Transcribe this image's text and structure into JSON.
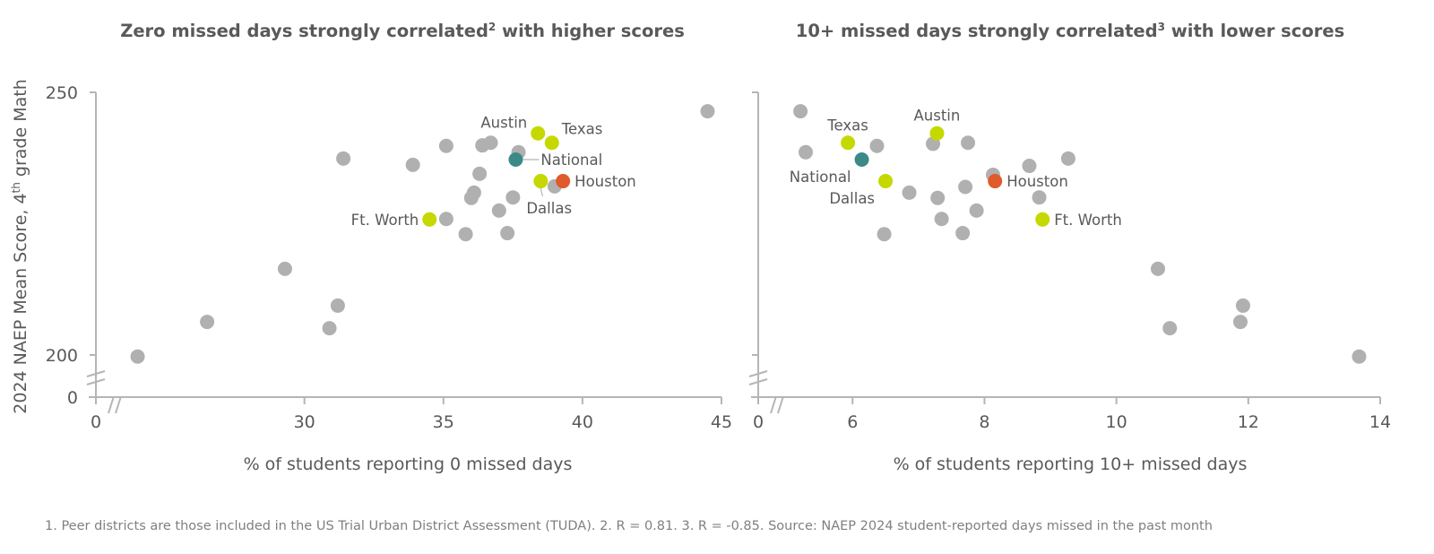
{
  "colors": {
    "other": "#b0b0b0",
    "texas_peer": "#c5d900",
    "national": "#3b8a88",
    "houston": "#e05a2b",
    "axis": "#b5b5b5",
    "text": "#595959"
  },
  "y_axis_title": "2024 NAEP Mean Score, 4",
  "y_axis_title_sup": "th",
  "y_axis_title_end": " grade Math",
  "footnote": "1. Peer districts are those included in the US Trial Urban District Assessment (TUDA). 2. R = 0.81. 3. R = -0.85. Source: NAEP 2024 student-reported days missed in the past month",
  "chart_data": [
    {
      "type": "scatter",
      "title": "Zero missed days strongly correlated",
      "title_sup": "2",
      "title_end": " with higher scores",
      "xlabel": "% of students reporting 0 missed days",
      "ylabel": "2024 NAEP Mean Score, 4th grade Math",
      "x_ticks": [
        0,
        30,
        35,
        40,
        45
      ],
      "x_tick_labels": [
        "0",
        "30",
        "35",
        "40",
        "45"
      ],
      "x_break": true,
      "xlim": [
        22.5,
        45
      ],
      "y_ticks": [
        0,
        200,
        250
      ],
      "y_tick_labels": [
        "0",
        "200",
        "250"
      ],
      "y_break": true,
      "ylim": [
        192,
        250
      ],
      "grid": false,
      "points": [
        {
          "x": 24.0,
          "y": 199.7,
          "group": "other"
        },
        {
          "x": 26.5,
          "y": 206.3,
          "group": "other"
        },
        {
          "x": 29.3,
          "y": 216.4,
          "group": "other"
        },
        {
          "x": 30.9,
          "y": 205.1,
          "group": "other"
        },
        {
          "x": 31.2,
          "y": 209.4,
          "group": "other"
        },
        {
          "x": 31.4,
          "y": 237.4,
          "group": "other"
        },
        {
          "x": 33.9,
          "y": 236.2,
          "group": "other"
        },
        {
          "x": 35.1,
          "y": 239.8,
          "group": "other"
        },
        {
          "x": 35.1,
          "y": 225.9,
          "group": "other"
        },
        {
          "x": 35.8,
          "y": 223.0,
          "group": "other"
        },
        {
          "x": 36.0,
          "y": 229.9,
          "group": "other"
        },
        {
          "x": 36.1,
          "y": 230.9,
          "group": "other"
        },
        {
          "x": 36.3,
          "y": 234.5,
          "group": "other"
        },
        {
          "x": 36.4,
          "y": 239.9,
          "group": "other"
        },
        {
          "x": 36.7,
          "y": 240.4,
          "group": "other"
        },
        {
          "x": 37.0,
          "y": 227.5,
          "group": "other"
        },
        {
          "x": 37.3,
          "y": 223.2,
          "group": "other"
        },
        {
          "x": 37.5,
          "y": 230.0,
          "group": "other"
        },
        {
          "x": 37.7,
          "y": 238.6,
          "group": "other"
        },
        {
          "x": 39.0,
          "y": 232.1,
          "group": "other"
        },
        {
          "x": 44.5,
          "y": 246.4,
          "group": "other"
        },
        {
          "x": 38.4,
          "y": 242.2,
          "group": "texas_peer",
          "label": "Austin",
          "label_pos": "left-up"
        },
        {
          "x": 38.9,
          "y": 240.4,
          "group": "texas_peer",
          "label": "Texas",
          "label_pos": "right-up"
        },
        {
          "x": 37.6,
          "y": 237.2,
          "group": "national",
          "label": "National",
          "label_pos": "right-leader"
        },
        {
          "x": 38.5,
          "y": 233.1,
          "group": "texas_peer",
          "label": "Dallas",
          "label_pos": "below-leader"
        },
        {
          "x": 39.3,
          "y": 233.1,
          "group": "houston",
          "label": "Houston",
          "label_pos": "right"
        },
        {
          "x": 34.5,
          "y": 225.8,
          "group": "texas_peer",
          "label": "Ft. Worth",
          "label_pos": "left"
        }
      ]
    },
    {
      "type": "scatter",
      "title": "10+ missed days strongly correlated",
      "title_sup": "3",
      "title_end": " with lower scores",
      "xlabel": "% of students reporting 10+ missed days",
      "ylabel": "2024 NAEP Mean Score, 4th grade Math",
      "x_ticks": [
        0,
        6,
        8,
        10,
        12,
        14
      ],
      "x_tick_labels": [
        "0",
        "6",
        "8",
        "10",
        "12",
        "14"
      ],
      "x_break": true,
      "xlim": [
        4.57,
        14
      ],
      "y_ticks": [
        0,
        200,
        250
      ],
      "y_break": true,
      "ylim": [
        192,
        250
      ],
      "grid": false,
      "points": [
        {
          "x": 5.21,
          "y": 246.4,
          "group": "other"
        },
        {
          "x": 5.29,
          "y": 238.6,
          "group": "other"
        },
        {
          "x": 6.37,
          "y": 239.8,
          "group": "other"
        },
        {
          "x": 6.86,
          "y": 230.9,
          "group": "other"
        },
        {
          "x": 6.48,
          "y": 223.0,
          "group": "other"
        },
        {
          "x": 7.29,
          "y": 229.9,
          "group": "other"
        },
        {
          "x": 7.35,
          "y": 225.9,
          "group": "other"
        },
        {
          "x": 7.22,
          "y": 240.2,
          "group": "other"
        },
        {
          "x": 7.75,
          "y": 240.4,
          "group": "other"
        },
        {
          "x": 7.71,
          "y": 232.0,
          "group": "other"
        },
        {
          "x": 7.88,
          "y": 227.5,
          "group": "other"
        },
        {
          "x": 7.67,
          "y": 223.2,
          "group": "other"
        },
        {
          "x": 8.13,
          "y": 234.3,
          "group": "other"
        },
        {
          "x": 8.68,
          "y": 236.0,
          "group": "other"
        },
        {
          "x": 8.83,
          "y": 230.0,
          "group": "other"
        },
        {
          "x": 9.27,
          "y": 237.4,
          "group": "other"
        },
        {
          "x": 10.63,
          "y": 216.4,
          "group": "other"
        },
        {
          "x": 10.81,
          "y": 205.1,
          "group": "other"
        },
        {
          "x": 11.88,
          "y": 206.3,
          "group": "other"
        },
        {
          "x": 11.92,
          "y": 209.4,
          "group": "other"
        },
        {
          "x": 13.68,
          "y": 199.7,
          "group": "other"
        },
        {
          "x": 5.93,
          "y": 240.4,
          "group": "texas_peer",
          "label": "Texas",
          "label_pos": "above"
        },
        {
          "x": 7.28,
          "y": 242.2,
          "group": "texas_peer",
          "label": "Austin",
          "label_pos": "above"
        },
        {
          "x": 6.14,
          "y": 237.2,
          "group": "national",
          "label": "National",
          "label_pos": "below-left"
        },
        {
          "x": 6.5,
          "y": 233.1,
          "group": "texas_peer",
          "label": "Dallas",
          "label_pos": "below-left"
        },
        {
          "x": 8.16,
          "y": 233.1,
          "group": "houston",
          "label": "Houston",
          "label_pos": "right"
        },
        {
          "x": 8.88,
          "y": 225.8,
          "group": "texas_peer",
          "label": "Ft. Worth",
          "label_pos": "right"
        }
      ]
    }
  ]
}
